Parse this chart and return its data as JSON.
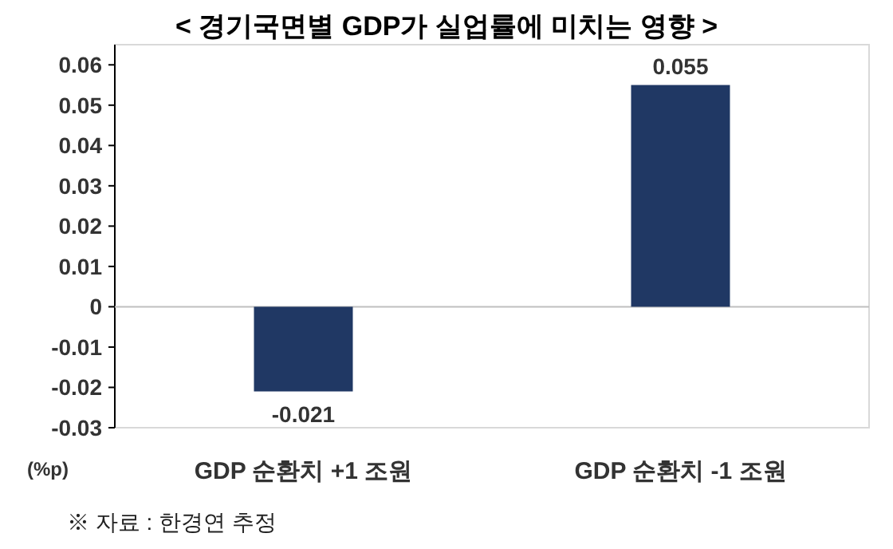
{
  "chart_data": {
    "type": "bar",
    "title": "< 경기국면별 GDP가 실업률에 미치는 영향 >",
    "ylabel": "(%p)",
    "categories": [
      "GDP 순환치 +1 조원",
      "GDP 순환치 -1 조원"
    ],
    "values": [
      -0.021,
      0.055
    ],
    "color": "#203864",
    "ylim": [
      -0.03,
      0.065
    ],
    "yticks": [
      -0.03,
      -0.02,
      -0.01,
      0,
      0.01,
      0.02,
      0.03,
      0.04,
      0.05,
      0.06
    ],
    "data_labels": true,
    "annotations": [
      "※ 자료 : 한경연 추정"
    ]
  }
}
